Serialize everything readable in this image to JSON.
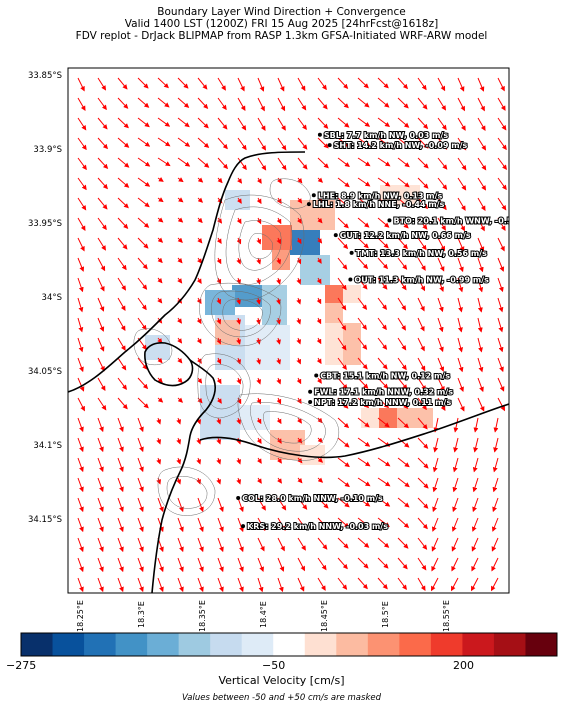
{
  "title": {
    "line1": "Boundary Layer Wind Direction + Convergence",
    "line2": "Valid 1400 LST (1200Z) FRI 15 Aug 2025 [24hrFcst@1618z]",
    "line3": "FDV replot - DrJack BLIPMAP from RASP 1.3km GFSA-Initiated WRF-ARW model"
  },
  "lat_labels": [
    "33.85°S",
    "33.9°S",
    "33.95°S",
    "34°S",
    "34.05°S",
    "34.1°S",
    "34.15°S"
  ],
  "lon_labels": [
    "18.25°E",
    "18.3°E",
    "18.35°E",
    "18.4°E",
    "18.45°E",
    "18.5°E",
    "18.55°E"
  ],
  "stations": [
    {
      "id": "SBL",
      "text": "SBL: 7.7 km/h NW, 0.03 m/s",
      "lon": 18.405,
      "lat": -33.89
    },
    {
      "id": "SHT",
      "text": "SHT: 14.2 km/h NW, -0.09 m/s",
      "lon": 18.413,
      "lat": -33.897
    },
    {
      "id": "LHE",
      "text": "LHE: 8.9 km/h NW, 0.13 m/s",
      "lon": 18.4,
      "lat": -33.931
    },
    {
      "id": "LHL",
      "text": "LHL: 1.8 km/h NNE, -0.44 m/s",
      "lon": 18.396,
      "lat": -33.937
    },
    {
      "id": "BTO",
      "text": "BTO: 20.1 km/h WNW, -0.54 m/s",
      "lon": 18.462,
      "lat": -33.948
    },
    {
      "id": "GUT",
      "text": "GUT: 12.2 km/h NW, 0.66 m/s",
      "lon": 18.418,
      "lat": -33.958
    },
    {
      "id": "TMT",
      "text": "TMT: 13.3 km/h NW, 0.56 m/s",
      "lon": 18.431,
      "lat": -33.97
    },
    {
      "id": "OUT",
      "text": "OUT: 11.3 km/h NW, -0.99 m/s",
      "lon": 18.43,
      "lat": -33.988
    },
    {
      "id": "CBT",
      "text": "CBT: 15.1 km/h NW, 0.12 m/s",
      "lon": 18.402,
      "lat": -34.053
    },
    {
      "id": "FWL",
      "text": "FWL: 17.1 km/h NNW, 0.32 m/s",
      "lon": 18.397,
      "lat": -34.064
    },
    {
      "id": "NPT",
      "text": "NPT: 17.2 km/h NNW, 0.11 m/s",
      "lon": 18.397,
      "lat": -34.071
    },
    {
      "id": "COL",
      "text": "COL: 28.0 km/h NNW, -0.10 m/s",
      "lon": 18.338,
      "lat": -34.136
    },
    {
      "id": "KRS",
      "text": "KRS: 29.2 km/h NNW, -0.03 m/s",
      "lon": 18.342,
      "lat": -34.155
    }
  ],
  "colorbar": {
    "min_label": "−275",
    "mid_label": "−50",
    "max_label": "200",
    "label": "Vertical Velocity [cm/s]",
    "note": "Values between -50 and +50 cm/s are masked",
    "colors": [
      "#08306b",
      "#08519c",
      "#2171b5",
      "#4292c6",
      "#6baed6",
      "#9ecae1",
      "#c6dbef",
      "#deebf7",
      "#ffffff",
      "#fee0d2",
      "#fcbba1",
      "#fc9272",
      "#fb6a4a",
      "#ef3b2c",
      "#cb181d",
      "#a50f15",
      "#67000d"
    ]
  },
  "colors": {
    "arrow": "#ff0000",
    "coast": "#000000",
    "contour": "#6b6b6b"
  }
}
